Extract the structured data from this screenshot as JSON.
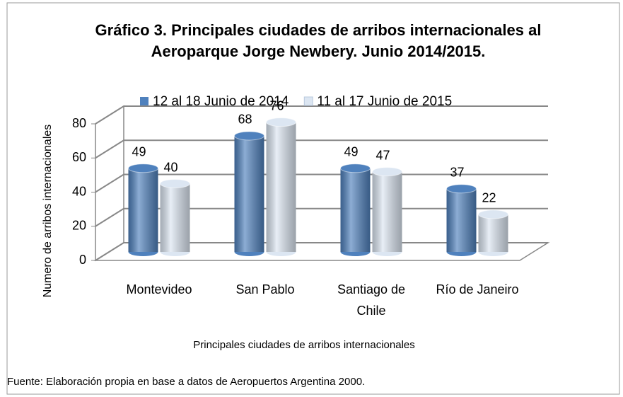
{
  "chart_data": {
    "type": "bar",
    "title": "Gráfico 3. Principales ciudades de arribos internacionales al Aeroparque Jorge Newbery. Junio 2014/2015.",
    "categories": [
      "Montevideo",
      "San Pablo",
      "Santiago de Chile",
      "Río de Janeiro"
    ],
    "series": [
      {
        "name": "12 al 18 Junio de 2014",
        "color": "#4f81bd",
        "values": [
          49,
          68,
          49,
          37
        ]
      },
      {
        "name": "11 al 17 Junio de 2015",
        "color": "#dce6f2",
        "values": [
          40,
          76,
          47,
          22
        ]
      }
    ],
    "ylim": [
      0,
      80
    ],
    "yticks": [
      0,
      20,
      40,
      60,
      80
    ],
    "grid": true,
    "y_label": "Numero de arribos internacionales",
    "x_label": "Principales ciudades de arribos internacionales",
    "source": "Fuente: Elaboración propia en base a datos de Aeropuertos Argentina 2000."
  }
}
